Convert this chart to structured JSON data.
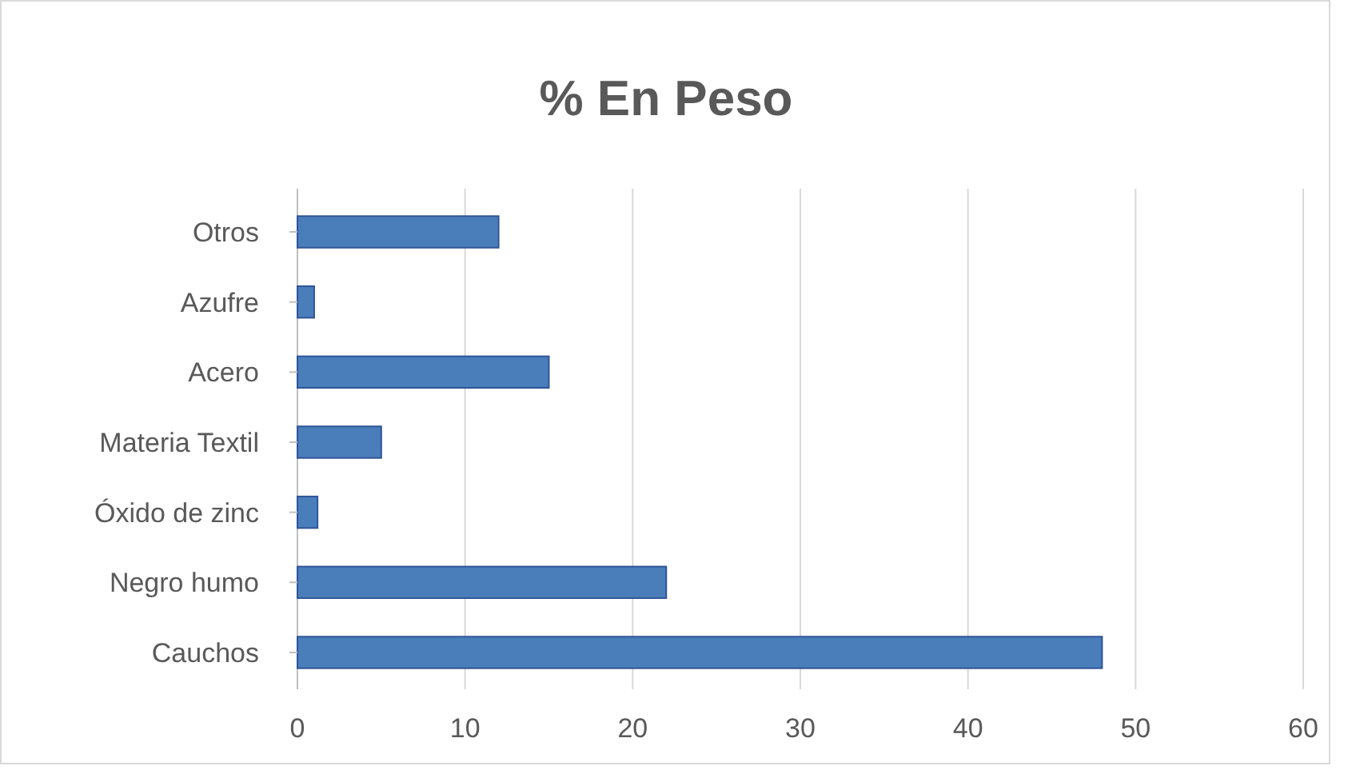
{
  "chart_data": {
    "type": "bar",
    "orientation": "horizontal",
    "title": "% En Peso",
    "categories": [
      "Otros",
      "Azufre",
      "Acero",
      "Materia Textil",
      "Óxido de zinc",
      "Negro humo",
      "Cauchos"
    ],
    "values": [
      12,
      1,
      15,
      5,
      1.2,
      22,
      48
    ],
    "color": "#4a7ebb",
    "xlim": [
      0,
      60
    ],
    "xticks": [
      0,
      10,
      20,
      30,
      40,
      50,
      60
    ],
    "grid": "x"
  }
}
